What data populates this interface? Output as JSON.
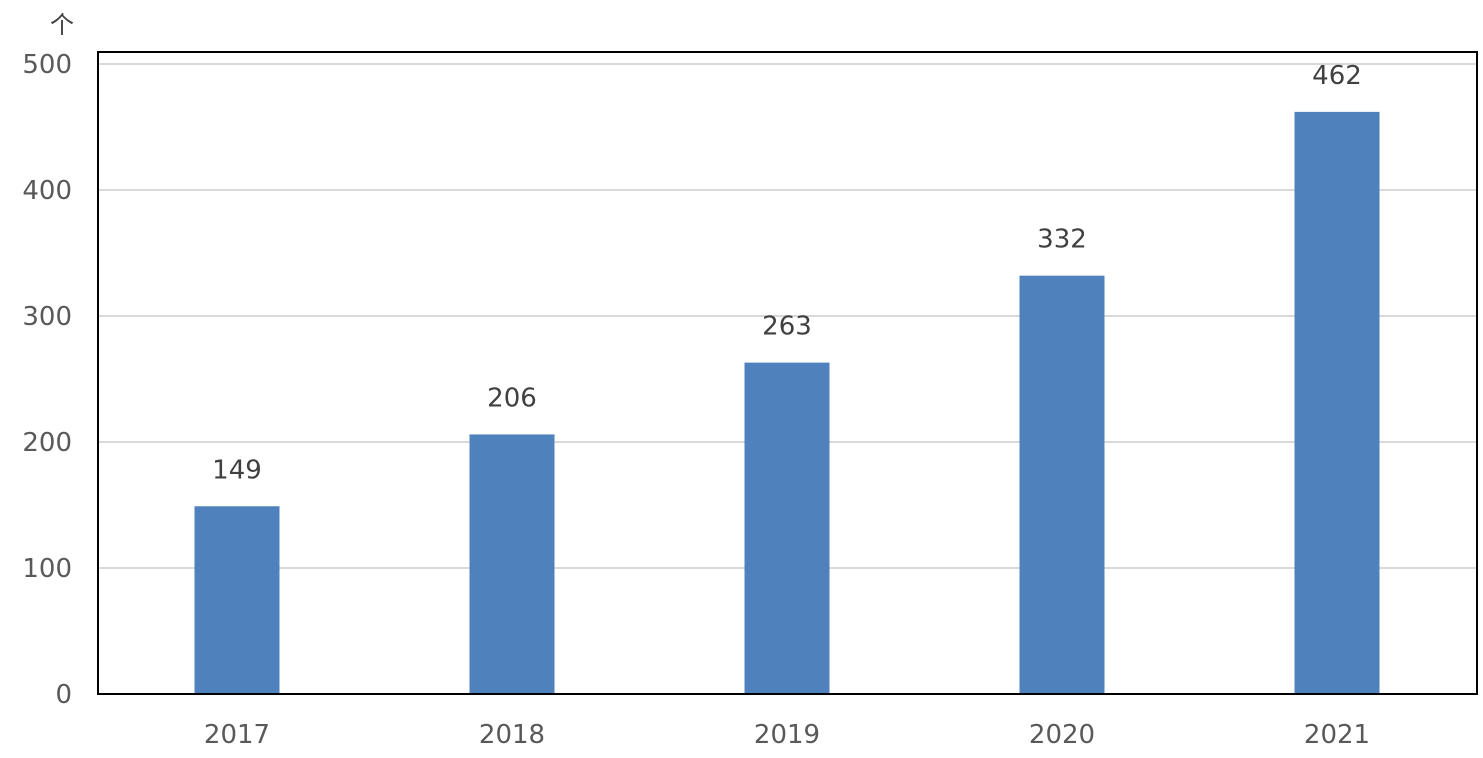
{
  "chart_data": {
    "type": "bar",
    "unit_label": "个",
    "categories": [
      "2017",
      "2018",
      "2019",
      "2020",
      "2021"
    ],
    "values": [
      149,
      206,
      263,
      332,
      462
    ],
    "ylim": [
      0,
      500
    ],
    "yticks": [
      0,
      100,
      200,
      300,
      400,
      500
    ],
    "grid": true,
    "bar_color": "#4f81bd",
    "grid_color": "#d9d9d9",
    "axis_color": "#000000"
  }
}
